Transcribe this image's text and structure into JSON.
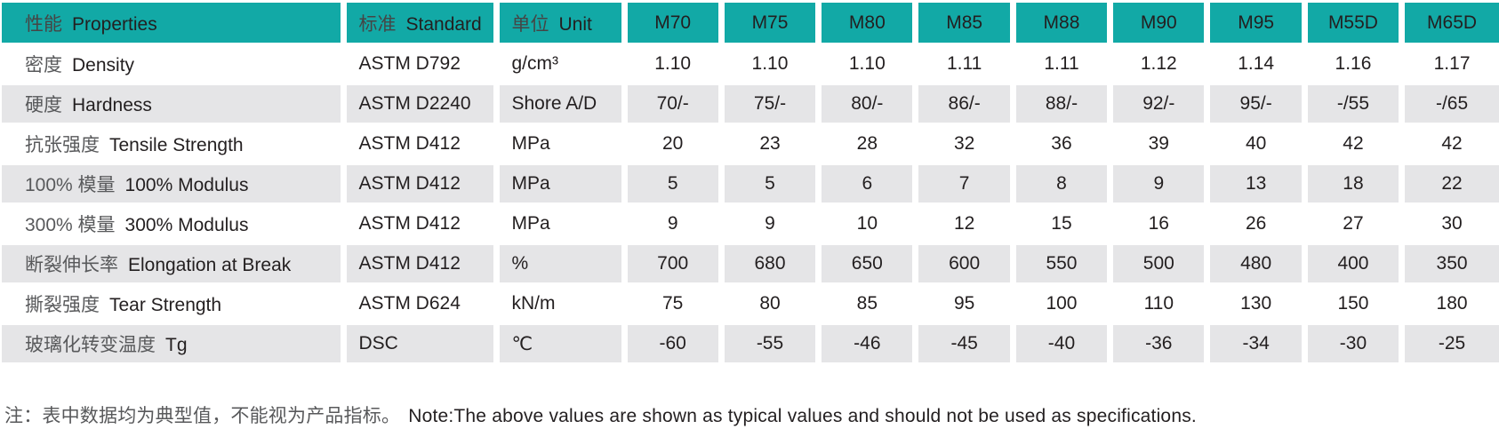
{
  "table": {
    "colors": {
      "header_bg": "#12a9a6",
      "stripe_bg": "#e5e5e7",
      "text": "#231f20",
      "chinese_text": "#58595b"
    },
    "header": {
      "properties": {
        "zh": "性能",
        "en": "Properties"
      },
      "standard": {
        "zh": "标准",
        "en": "Standard"
      },
      "unit": {
        "zh": "单位",
        "en": "Unit"
      },
      "grades": [
        "M70",
        "M75",
        "M80",
        "M85",
        "M88",
        "M90",
        "M95",
        "M55D",
        "M65D"
      ]
    },
    "rows": [
      {
        "zh": "密度",
        "en": "Density",
        "standard": "ASTM D792",
        "unit": "g/cm³",
        "values": [
          "1.10",
          "1.10",
          "1.10",
          "1.11",
          "1.11",
          "1.12",
          "1.14",
          "1.16",
          "1.17"
        ]
      },
      {
        "zh": "硬度",
        "en": "Hardness",
        "standard": "ASTM D2240",
        "unit": "Shore A/D",
        "values": [
          "70/-",
          "75/-",
          "80/-",
          "86/-",
          "88/-",
          "92/-",
          "95/-",
          "-/55",
          "-/65"
        ]
      },
      {
        "zh": "抗张强度",
        "en": "Tensile Strength",
        "standard": "ASTM D412",
        "unit": "MPa",
        "values": [
          "20",
          "23",
          "28",
          "32",
          "36",
          "39",
          "40",
          "42",
          "42"
        ]
      },
      {
        "zh": "100% 模量",
        "en": "100% Modulus",
        "standard": "ASTM D412",
        "unit": "MPa",
        "values": [
          "5",
          "5",
          "6",
          "7",
          "8",
          "9",
          "13",
          "18",
          "22"
        ]
      },
      {
        "zh": "300% 模量",
        "en": "300% Modulus",
        "standard": "ASTM D412",
        "unit": "MPa",
        "values": [
          "9",
          "9",
          "10",
          "12",
          "15",
          "16",
          "26",
          "27",
          "30"
        ]
      },
      {
        "zh": "断裂伸长率",
        "en": "Elongation at Break",
        "standard": "ASTM D412",
        "unit": "%",
        "values": [
          "700",
          "680",
          "650",
          "600",
          "550",
          "500",
          "480",
          "400",
          "350"
        ]
      },
      {
        "zh": "撕裂强度",
        "en": "Tear Strength",
        "standard": "ASTM D624",
        "unit": "kN/m",
        "values": [
          "75",
          "80",
          "85",
          "95",
          "100",
          "110",
          "130",
          "150",
          "180"
        ]
      },
      {
        "zh": "玻璃化转变温度",
        "en": "Tg",
        "standard": "DSC",
        "unit": "℃",
        "values": [
          "-60",
          "-55",
          "-46",
          "-45",
          "-40",
          "-36",
          "-34",
          "-30",
          "-25"
        ]
      }
    ]
  },
  "note": {
    "zh": "注：表中数据均为典型值，不能视为产品指标。",
    "en": "Note:The above values are shown as typical values and should not be used as specifications."
  }
}
